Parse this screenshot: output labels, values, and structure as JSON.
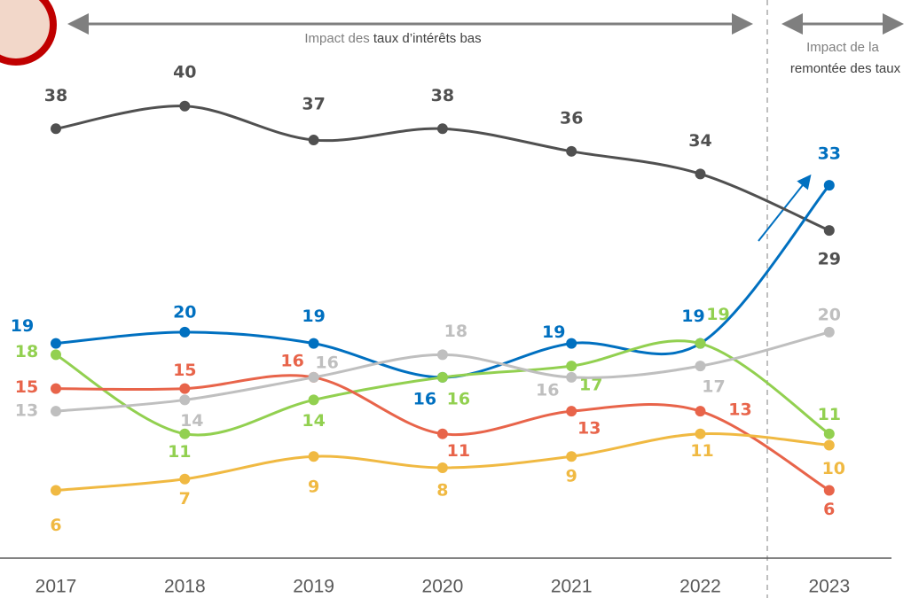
{
  "chart_data": {
    "type": "line",
    "categories": [
      "2017",
      "2018",
      "2019",
      "2020",
      "2021",
      "2022",
      "2023"
    ],
    "ylim": [
      0,
      49
    ],
    "series": [
      {
        "color": "#505050",
        "values": [
          38,
          40,
          37,
          38,
          36,
          34,
          29
        ]
      },
      {
        "color": "#0070c0",
        "values": [
          19,
          20,
          19,
          16,
          19,
          19,
          33
        ]
      },
      {
        "color": "#92d050",
        "values": [
          18,
          11,
          14,
          16,
          17,
          19,
          11
        ]
      },
      {
        "color": "#e8644a",
        "values": [
          15,
          15,
          16,
          11,
          13,
          13,
          6
        ]
      },
      {
        "color": "#bfbfbf",
        "values": [
          13,
          14,
          16,
          18,
          16,
          17,
          20
        ]
      },
      {
        "color": "#f0b942",
        "values": [
          6,
          7,
          9,
          8,
          9,
          11,
          10
        ]
      }
    ],
    "annotations": [
      {
        "text": "Impact des ",
        "emphasis": "taux d’intérêts bas"
      },
      {
        "text": "Impact de la",
        "emphasis": "remontée des taux"
      }
    ]
  }
}
